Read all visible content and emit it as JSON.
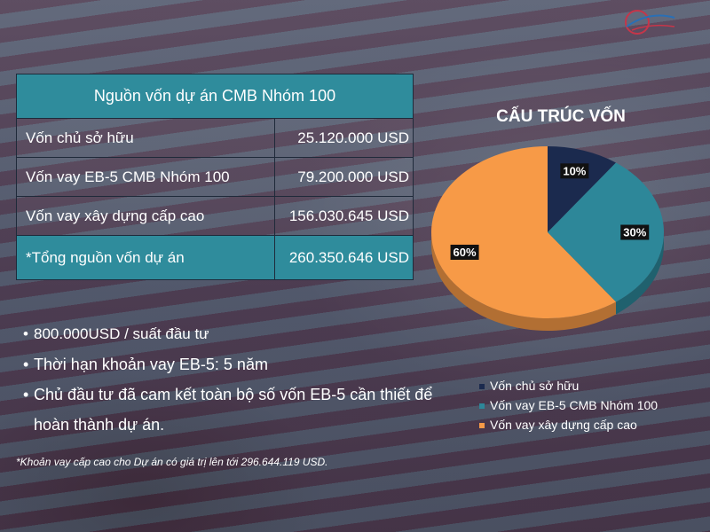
{
  "table": {
    "title": "Nguồn vốn dự án CMB Nhóm 100",
    "rows": [
      {
        "label": "Vốn chủ sở hữu",
        "value": "25.120.000 USD"
      },
      {
        "label": "Vốn vay EB-5 CMB Nhóm 100",
        "value": "79.200.000 USD"
      },
      {
        "label": "Vốn vay xây dựng cấp cao",
        "value": "156.030.645 USD"
      }
    ],
    "total": {
      "label": "*Tổng nguồn vốn dự án",
      "value": "260.350.646 USD"
    }
  },
  "bullets": [
    "800.000USD / suất đầu tư",
    "Thời hạn khoản vay EB-5: 5 năm",
    "Chủ đầu tư đã cam kết toàn bộ số vốn EB-5 cần thiết để hoàn thành dự án."
  ],
  "footnote": "*Khoản vay cấp cao cho Dự án có giá trị lên tới 296.644.119 USD.",
  "chart_data": {
    "type": "pie",
    "title": "CẤU TRÚC VỐN",
    "categories": [
      "Vốn chủ sở hữu",
      "Vốn vay EB-5 CMB Nhóm 100",
      "Vốn vay xây dựng cấp cao"
    ],
    "values": [
      10,
      30,
      60
    ],
    "labels": [
      "10%",
      "30%",
      "60%"
    ],
    "colors": [
      "#1b2a4e",
      "#2d8799",
      "#f79a47"
    ],
    "legend_position": "bottom"
  },
  "colors": {
    "table_header": "#2f8c9c",
    "total_row": "#2f8c9c"
  }
}
